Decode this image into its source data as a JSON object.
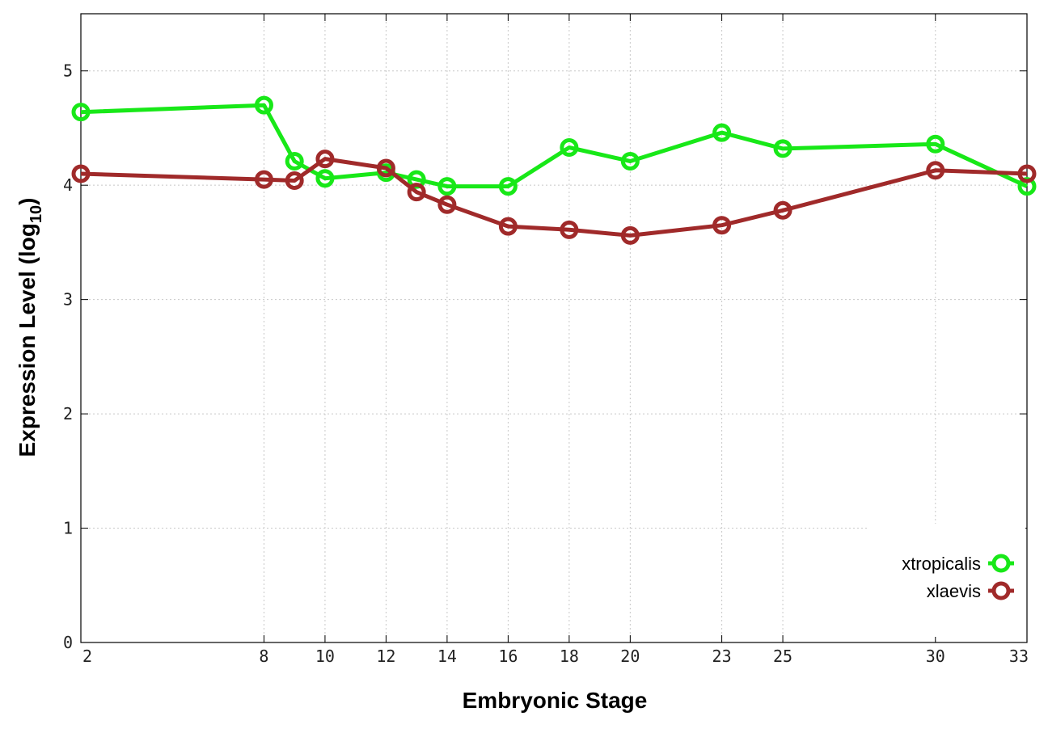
{
  "chart_data": {
    "type": "line",
    "title": "",
    "xlabel": "Embryonic Stage",
    "ylabel_main": "Expression Level (log",
    "ylabel_sub": "10",
    "ylabel_close": ")",
    "xlim": [
      2,
      33
    ],
    "ylim": [
      0,
      5.5
    ],
    "grid": true,
    "legend_position": "bottom-right",
    "x_ticks": [
      2,
      8,
      10,
      12,
      14,
      16,
      18,
      20,
      23,
      25,
      30,
      33
    ],
    "y_ticks": [
      0,
      1,
      2,
      3,
      4,
      5
    ],
    "series": [
      {
        "name": "xtropicalis",
        "color": "#18e818",
        "x": [
          2,
          8,
          9,
          10,
          12,
          13,
          14,
          16,
          18,
          20,
          23,
          25,
          30,
          33
        ],
        "y": [
          4.64,
          4.7,
          4.21,
          4.06,
          4.11,
          4.05,
          3.99,
          3.99,
          4.33,
          4.21,
          4.46,
          4.32,
          4.36,
          3.99
        ]
      },
      {
        "name": "xlaevis",
        "color": "#a02a2a",
        "x": [
          2,
          8,
          9,
          10,
          12,
          13,
          14,
          16,
          18,
          20,
          23,
          25,
          30,
          33
        ],
        "y": [
          4.1,
          4.05,
          4.04,
          4.23,
          4.15,
          3.94,
          3.83,
          3.64,
          3.61,
          3.56,
          3.65,
          3.78,
          4.13,
          4.1
        ]
      }
    ]
  }
}
